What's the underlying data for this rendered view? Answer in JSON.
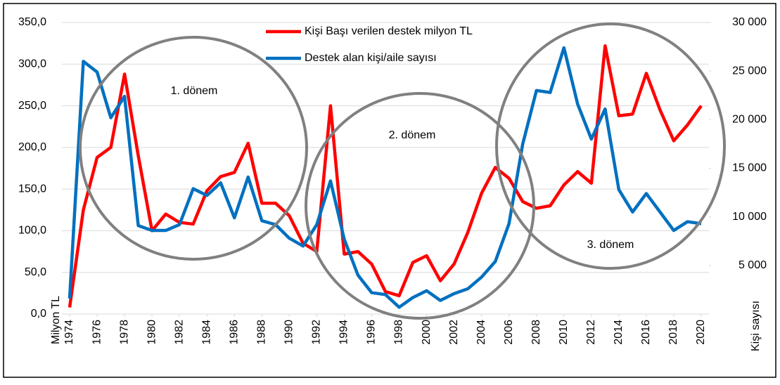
{
  "chart_data": {
    "type": "line",
    "x": [
      1974,
      1975,
      1976,
      1977,
      1978,
      1979,
      1980,
      1981,
      1982,
      1983,
      1984,
      1985,
      1986,
      1987,
      1988,
      1989,
      1990,
      1991,
      1992,
      1993,
      1994,
      1995,
      1996,
      1997,
      1998,
      1999,
      2000,
      2001,
      2002,
      2003,
      2004,
      2005,
      2006,
      2007,
      2008,
      2009,
      2010,
      2011,
      2012,
      2013,
      2014,
      2015,
      2016,
      2017,
      2018,
      2019,
      2020
    ],
    "xlim": [
      1974,
      2020
    ],
    "xticks": [
      1974,
      1976,
      1978,
      1980,
      1982,
      1984,
      1986,
      1988,
      1990,
      1992,
      1994,
      1996,
      1998,
      2000,
      2002,
      2004,
      2006,
      2008,
      2010,
      2012,
      2014,
      2016,
      2018,
      2020
    ],
    "ylabel": "Milyon TL",
    "y2label": "Kişi sayısı",
    "ylim": [
      0,
      350
    ],
    "yticks": [
      {
        "value": 0,
        "label": "0,0"
      },
      {
        "value": 50,
        "label": "50,0"
      },
      {
        "value": 100,
        "label": "100,0"
      },
      {
        "value": 150,
        "label": "150,0"
      },
      {
        "value": 200,
        "label": "200,0"
      },
      {
        "value": 250,
        "label": "250,0"
      },
      {
        "value": 300,
        "label": "300,0"
      },
      {
        "value": 350,
        "label": "350,0"
      }
    ],
    "y2lim": [
      0,
      30000
    ],
    "y2ticks": [
      {
        "value": 5000,
        "label": "5 000"
      },
      {
        "value": 10000,
        "label": "10 000"
      },
      {
        "value": 15000,
        "label": "15 000"
      },
      {
        "value": 20000,
        "label": "20 000"
      },
      {
        "value": 25000,
        "label": "25 000"
      },
      {
        "value": 30000,
        "label": "30 000"
      }
    ],
    "grid": true,
    "series": [
      {
        "name": "Kişi Başı verilen destek milyon TL",
        "color": "#ff0000",
        "values": [
          8,
          125,
          188,
          200,
          288,
          190,
          100,
          120,
          110,
          108,
          148,
          165,
          170,
          205,
          133,
          133,
          118,
          85,
          75,
          250,
          72,
          75,
          60,
          27,
          22,
          62,
          70,
          40,
          60,
          98,
          145,
          176,
          163,
          135,
          127,
          130,
          155,
          171,
          157,
          322,
          238,
          240,
          289,
          245,
          208,
          227,
          250
        ]
      },
      {
        "name": "Destek alan kişi/aile sayısı",
        "color": "#0070c0",
        "axis": "y2",
        "values": [
          1600,
          26000,
          24900,
          20200,
          22400,
          9100,
          8600,
          8600,
          9200,
          12900,
          12200,
          13500,
          9900,
          14100,
          9600,
          9200,
          7800,
          7000,
          9200,
          13700,
          7700,
          4000,
          2200,
          2000,
          700,
          1700,
          2400,
          1400,
          2100,
          2600,
          3800,
          5400,
          9300,
          17500,
          23000,
          22800,
          27400,
          21600,
          18000,
          21100,
          12800,
          10500,
          12400,
          10500,
          8600,
          9500,
          9300
        ]
      }
    ],
    "annotations": [
      "1. dönem",
      "2. dönem",
      "3. dönem"
    ]
  }
}
